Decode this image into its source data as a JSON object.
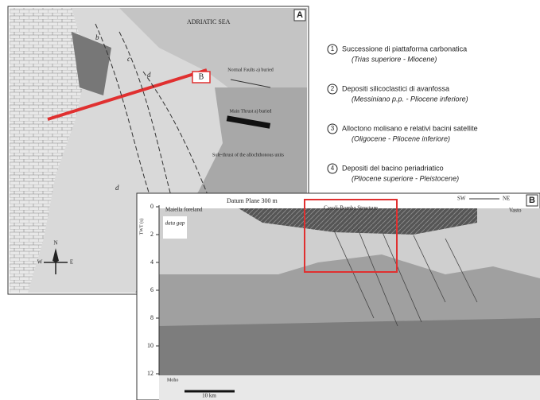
{
  "map": {
    "panel_label": "A",
    "sea_label": "ADRIATIC SEA",
    "site_label": "B",
    "fault_legend": [
      "Normal Faults a) buried",
      "Main Thrust a) buried",
      "Sole-thrust of the allochthonous units"
    ],
    "unit_labels": [
      "b",
      "c",
      "d",
      "d"
    ],
    "north": "N",
    "west": "W",
    "east": "E"
  },
  "legend": [
    {
      "number": "1",
      "title": "Successione di piattaforma carbonatica",
      "age": "(Trias superiore - Miocene)"
    },
    {
      "number": "2",
      "title": "Depositi silicoclastici di avanfossa",
      "age": "(Messiniano p.p. - Pliocene inferiore)"
    },
    {
      "number": "3",
      "title": "Alloctono molisano e relativi bacini satellite",
      "age": "(Oligocene - Pliocene inferiore)"
    },
    {
      "number": "4",
      "title": "Depositi del bacino periadriatico",
      "age": "(Pliocene superiore - Pleistocene)"
    }
  ],
  "section": {
    "panel_label": "B",
    "datum": "Datum Plane 300 m",
    "structure": "Casoli-Bomba Structure",
    "left_label": "Maiella foreland",
    "right_label": "Vasto",
    "gap": "data gap",
    "sw": "SW",
    "ne": "NE",
    "axis_label": "TWT (s)",
    "depth_ticks": [
      "0",
      "2",
      "4",
      "6",
      "8",
      "10",
      "12"
    ],
    "scale": "10 km",
    "bottom_label": "Moho"
  }
}
